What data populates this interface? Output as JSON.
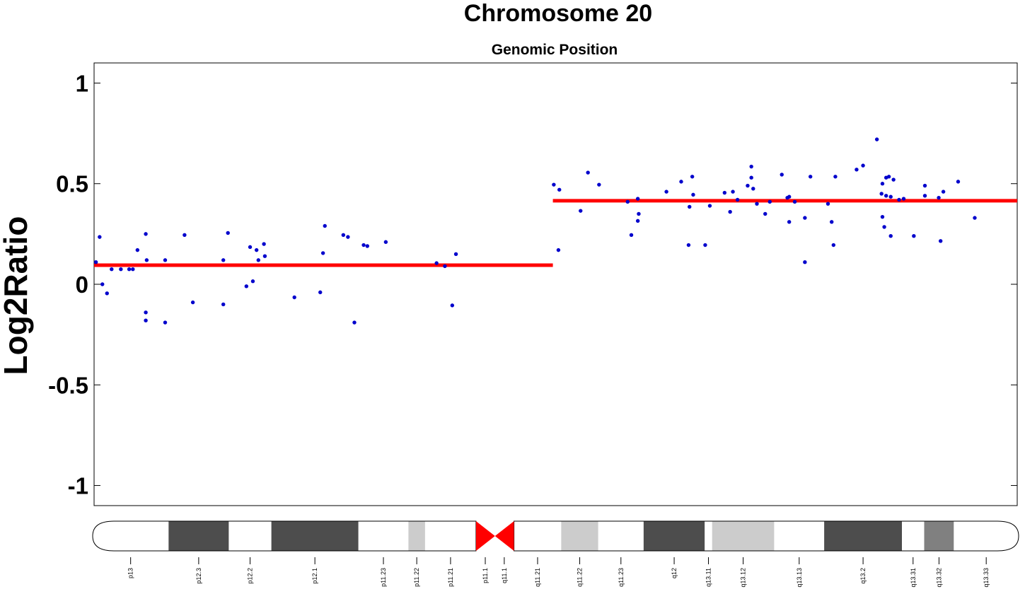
{
  "chart_data": {
    "type": "scatter",
    "title": "Chromosome 20",
    "subtitle": "Genomic Position",
    "ylabel": "Log2Ratio",
    "ylim": [
      -1.1,
      1.1
    ],
    "xlim": [
      0,
      1
    ],
    "yticks": [
      {
        "value": 1,
        "label": "1"
      },
      {
        "value": 0.5,
        "label": "0.5"
      },
      {
        "value": 0,
        "label": "0"
      },
      {
        "value": -0.5,
        "label": "-0.5"
      },
      {
        "value": -1,
        "label": "-1"
      }
    ],
    "colors": {
      "points": "#0000cc",
      "segments": "#ff0000",
      "centromere": "#ff0000"
    },
    "points": [
      [
        0.002,
        0.11
      ],
      [
        0.006,
        0.235
      ],
      [
        0.009,
        0.0
      ],
      [
        0.014,
        -0.045
      ],
      [
        0.019,
        0.075
      ],
      [
        0.029,
        0.075
      ],
      [
        0.038,
        0.075
      ],
      [
        0.042,
        0.075
      ],
      [
        0.047,
        0.17
      ],
      [
        0.056,
        0.25
      ],
      [
        0.056,
        -0.14
      ],
      [
        0.056,
        -0.18
      ],
      [
        0.057,
        0.12
      ],
      [
        0.077,
        0.12
      ],
      [
        0.077,
        -0.19
      ],
      [
        0.098,
        0.245
      ],
      [
        0.107,
        -0.09
      ],
      [
        0.14,
        0.12
      ],
      [
        0.14,
        -0.1
      ],
      [
        0.145,
        0.255
      ],
      [
        0.165,
        -0.01
      ],
      [
        0.169,
        0.185
      ],
      [
        0.172,
        0.015
      ],
      [
        0.176,
        0.17
      ],
      [
        0.178,
        0.12
      ],
      [
        0.184,
        0.2
      ],
      [
        0.185,
        0.14
      ],
      [
        0.217,
        -0.065
      ],
      [
        0.245,
        -0.04
      ],
      [
        0.248,
        0.155
      ],
      [
        0.25,
        0.29
      ],
      [
        0.27,
        0.245
      ],
      [
        0.275,
        0.235
      ],
      [
        0.282,
        -0.19
      ],
      [
        0.292,
        0.195
      ],
      [
        0.296,
        0.19
      ],
      [
        0.316,
        0.21
      ],
      [
        0.371,
        0.105
      ],
      [
        0.38,
        0.09
      ],
      [
        0.388,
        -0.105
      ],
      [
        0.392,
        0.15
      ],
      [
        0.498,
        0.495
      ],
      [
        0.503,
        0.17
      ],
      [
        0.504,
        0.47
      ],
      [
        0.527,
        0.365
      ],
      [
        0.535,
        0.555
      ],
      [
        0.547,
        0.495
      ],
      [
        0.578,
        0.41
      ],
      [
        0.582,
        0.245
      ],
      [
        0.589,
        0.315
      ],
      [
        0.589,
        0.425
      ],
      [
        0.59,
        0.35
      ],
      [
        0.62,
        0.46
      ],
      [
        0.636,
        0.51
      ],
      [
        0.644,
        0.195
      ],
      [
        0.645,
        0.385
      ],
      [
        0.648,
        0.535
      ],
      [
        0.649,
        0.445
      ],
      [
        0.662,
        0.195
      ],
      [
        0.667,
        0.39
      ],
      [
        0.683,
        0.455
      ],
      [
        0.689,
        0.36
      ],
      [
        0.692,
        0.46
      ],
      [
        0.697,
        0.42
      ],
      [
        0.708,
        0.49
      ],
      [
        0.712,
        0.585
      ],
      [
        0.712,
        0.53
      ],
      [
        0.714,
        0.475
      ],
      [
        0.718,
        0.4
      ],
      [
        0.727,
        0.35
      ],
      [
        0.732,
        0.41
      ],
      [
        0.745,
        0.545
      ],
      [
        0.751,
        0.43
      ],
      [
        0.753,
        0.31
      ],
      [
        0.753,
        0.435
      ],
      [
        0.759,
        0.41
      ],
      [
        0.77,
        0.33
      ],
      [
        0.77,
        0.11
      ],
      [
        0.776,
        0.535
      ],
      [
        0.795,
        0.4
      ],
      [
        0.799,
        0.31
      ],
      [
        0.801,
        0.195
      ],
      [
        0.803,
        0.535
      ],
      [
        0.826,
        0.57
      ],
      [
        0.833,
        0.59
      ],
      [
        0.848,
        0.72
      ],
      [
        0.853,
        0.45
      ],
      [
        0.854,
        0.335
      ],
      [
        0.854,
        0.5
      ],
      [
        0.856,
        0.285
      ],
      [
        0.858,
        0.53
      ],
      [
        0.858,
        0.44
      ],
      [
        0.861,
        0.535
      ],
      [
        0.863,
        0.435
      ],
      [
        0.863,
        0.24
      ],
      [
        0.866,
        0.52
      ],
      [
        0.872,
        0.42
      ],
      [
        0.877,
        0.425
      ],
      [
        0.888,
        0.24
      ],
      [
        0.9,
        0.49
      ],
      [
        0.9,
        0.44
      ],
      [
        0.915,
        0.43
      ],
      [
        0.917,
        0.215
      ],
      [
        0.92,
        0.46
      ],
      [
        0.936,
        0.51
      ],
      [
        0.954,
        0.33
      ]
    ],
    "segments": [
      {
        "x_start": 0.0,
        "x_end": 0.497,
        "value": 0.095
      },
      {
        "x_start": 0.497,
        "x_end": 1.0,
        "value": 0.415
      }
    ],
    "ideogram": {
      "centromere": [
        0.414,
        0.455
      ],
      "bands": [
        {
          "label": "p13",
          "start": 0.0,
          "end": 0.082,
          "stain": "#ffffff"
        },
        {
          "label": "p12.3",
          "start": 0.082,
          "end": 0.147,
          "stain": "#4d4d4d"
        },
        {
          "label": "p12.2",
          "start": 0.147,
          "end": 0.193,
          "stain": "#ffffff"
        },
        {
          "label": "p12.1",
          "start": 0.193,
          "end": 0.287,
          "stain": "#4d4d4d"
        },
        {
          "label": "p11.23",
          "start": 0.287,
          "end": 0.341,
          "stain": "#ffffff"
        },
        {
          "label": "p11.22",
          "start": 0.341,
          "end": 0.359,
          "stain": "#cccccc"
        },
        {
          "label": "p11.21",
          "start": 0.359,
          "end": 0.414,
          "stain": "#ffffff"
        },
        {
          "label": "p11.1",
          "start": 0.414,
          "end": 0.434,
          "stain": "#ff0000"
        },
        {
          "label": "q11.1",
          "start": 0.434,
          "end": 0.455,
          "stain": "#ff0000"
        },
        {
          "label": "q11.21",
          "start": 0.455,
          "end": 0.506,
          "stain": "#ffffff"
        },
        {
          "label": "q11.22",
          "start": 0.506,
          "end": 0.546,
          "stain": "#cccccc"
        },
        {
          "label": "q11.23",
          "start": 0.546,
          "end": 0.595,
          "stain": "#ffffff"
        },
        {
          "label": "q12",
          "start": 0.595,
          "end": 0.661,
          "stain": "#4d4d4d"
        },
        {
          "label": "q13.11",
          "start": 0.661,
          "end": 0.669,
          "stain": "#ffffff"
        },
        {
          "label": "q13.12",
          "start": 0.669,
          "end": 0.736,
          "stain": "#cccccc"
        },
        {
          "label": "q13.13",
          "start": 0.736,
          "end": 0.79,
          "stain": "#ffffff"
        },
        {
          "label": "q13.2",
          "start": 0.79,
          "end": 0.874,
          "stain": "#4d4d4d"
        },
        {
          "label": "q13.31",
          "start": 0.874,
          "end": 0.898,
          "stain": "#ffffff"
        },
        {
          "label": "q13.32",
          "start": 0.898,
          "end": 0.93,
          "stain": "#808080"
        },
        {
          "label": "q13.33",
          "start": 0.93,
          "end": 1.0,
          "stain": "#ffffff"
        }
      ]
    }
  }
}
